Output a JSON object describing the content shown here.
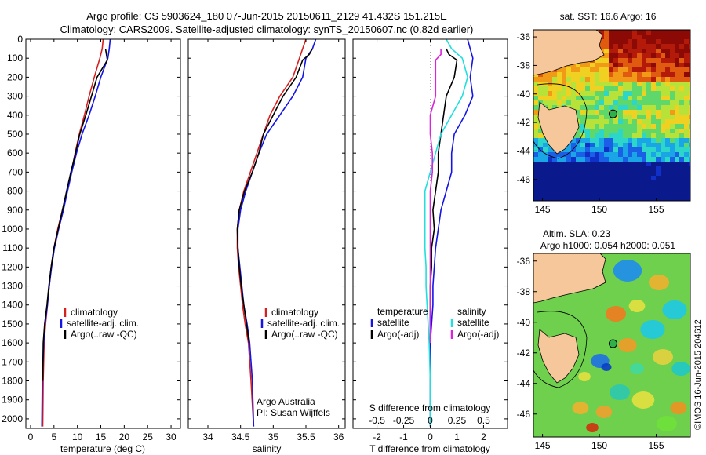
{
  "title_line1": "Argo profile: CS 5903624_180 07-Jun-2015 20150611_2129 41.432S 151.215E",
  "title_line2": "Climatology: CARS2009. Satellite-adjusted climatology: synTS_20150607.nc (0.82d earlier)",
  "colors": {
    "climatology": "#d62020",
    "satellite": "#1414e6",
    "argo": "#000000",
    "satellite_salinity": "#22dede",
    "argo_salinity": "#dd22dd",
    "land": "#f5c79a"
  },
  "chart_data": [
    {
      "type": "line",
      "name": "temperature-profile",
      "xlabel": "temperature (deg C)",
      "ylabel": "",
      "xlim": [
        -1,
        32
      ],
      "ylim": [
        2050,
        0
      ],
      "xticks": [
        0,
        5,
        10,
        15,
        20,
        25,
        30
      ],
      "yticks": [
        0,
        100,
        200,
        300,
        400,
        500,
        600,
        700,
        800,
        900,
        1000,
        1100,
        1200,
        1300,
        1400,
        1500,
        1600,
        1700,
        1800,
        1900,
        2000
      ],
      "legend": [
        "climatology",
        "satellite-adj. clim.",
        "Argo(..raw -QC)"
      ],
      "series": [
        {
          "name": "climatology",
          "color_key": "climatology",
          "x": [
            15.5,
            15.3,
            14.8,
            13.6,
            12.5,
            11.5,
            10.4,
            9.5,
            8.7,
            7.8,
            6.8,
            5.8,
            5.0,
            4.4,
            4.0,
            3.6,
            3.2,
            2.9,
            2.7,
            2.6
          ],
          "y": [
            0,
            50,
            100,
            200,
            300,
            400,
            500,
            600,
            700,
            800,
            900,
            1000,
            1100,
            1200,
            1300,
            1400,
            1500,
            1600,
            1800,
            2040
          ]
        },
        {
          "name": "satellite-adj. clim.",
          "color_key": "satellite",
          "x": [
            17.0,
            16.8,
            16.5,
            15.0,
            13.8,
            12.5,
            11.0,
            9.8,
            8.8,
            7.9,
            7.0,
            6.0,
            5.1,
            4.5,
            4.0,
            3.6,
            3.1,
            2.8,
            2.5,
            2.4
          ],
          "y": [
            0,
            50,
            100,
            200,
            300,
            400,
            500,
            600,
            700,
            800,
            900,
            1000,
            1100,
            1200,
            1300,
            1400,
            1500,
            1600,
            1800,
            2040
          ]
        },
        {
          "name": "Argo(..raw -QC)",
          "color_key": "argo",
          "x": [
            16.0,
            16.2,
            16.4,
            14.2,
            13.0,
            11.8,
            10.5,
            9.6,
            8.6,
            7.7,
            6.8,
            5.9,
            5.0,
            4.4,
            3.9,
            3.5,
            3.0,
            2.7,
            2.6
          ],
          "y": [
            50,
            80,
            110,
            200,
            300,
            400,
            500,
            600,
            700,
            800,
            900,
            1000,
            1100,
            1200,
            1300,
            1400,
            1500,
            1600,
            1800
          ]
        }
      ]
    },
    {
      "type": "line",
      "name": "salinity-profile",
      "xlabel": "salinity",
      "xlim": [
        33.7,
        36.1
      ],
      "ylim": [
        2050,
        0
      ],
      "xticks": [
        34,
        34.5,
        35,
        35.5,
        36
      ],
      "legend": [
        "climatology",
        "satellite-adj. clim.",
        "Argo(..raw -QC)"
      ],
      "annotation": [
        "Argo Australia",
        "PI: Susan Wijffels"
      ],
      "series": [
        {
          "name": "climatology",
          "color_key": "climatology",
          "x": [
            35.5,
            35.45,
            35.4,
            35.3,
            35.1,
            34.95,
            34.85,
            34.75,
            34.65,
            34.55,
            34.48,
            34.45,
            34.45,
            34.47,
            34.5,
            34.53,
            34.57,
            34.62,
            34.66,
            34.7
          ],
          "y": [
            0,
            50,
            100,
            200,
            300,
            400,
            500,
            600,
            700,
            800,
            900,
            1000,
            1100,
            1200,
            1300,
            1400,
            1500,
            1600,
            1800,
            2040
          ]
        },
        {
          "name": "satellite-adj. clim.",
          "color_key": "satellite",
          "x": [
            35.65,
            35.6,
            35.5,
            35.45,
            35.3,
            35.1,
            34.9,
            34.78,
            34.68,
            34.58,
            34.5,
            34.46,
            34.46,
            34.49,
            34.52,
            34.55,
            34.6,
            34.64,
            34.68,
            34.7
          ],
          "y": [
            0,
            50,
            100,
            200,
            300,
            400,
            500,
            600,
            700,
            800,
            900,
            1000,
            1100,
            1200,
            1300,
            1400,
            1500,
            1600,
            1800,
            2040
          ]
        },
        {
          "name": "Argo(..raw -QC)",
          "color_key": "argo",
          "x": [
            35.6,
            35.55,
            35.45,
            35.35,
            35.15,
            35.0,
            34.85,
            34.78,
            34.68,
            34.56,
            34.48,
            34.45,
            34.46,
            34.48,
            34.51,
            34.55,
            34.59,
            34.63
          ],
          "y": [
            50,
            80,
            110,
            200,
            300,
            400,
            500,
            600,
            700,
            800,
            900,
            1000,
            1100,
            1200,
            1300,
            1400,
            1500,
            1600
          ]
        }
      ]
    },
    {
      "type": "line",
      "name": "difference-profile",
      "xlabel": "T difference from climatology",
      "xlabel_top": "S difference from climatology",
      "xlim": [
        -2.9,
        2.9
      ],
      "ylim": [
        2050,
        0
      ],
      "xticks": [
        -2,
        -1,
        0,
        1,
        2
      ],
      "s_ticks": [
        -0.5,
        -0.25,
        0,
        0.25,
        0.5
      ],
      "legend_headers": [
        "temperature",
        "salinity"
      ],
      "legend_temperature": [
        "satellite",
        "Argo(-adj)"
      ],
      "legend_salinity": [
        "satellite",
        "Argo(-adj)"
      ],
      "series": [
        {
          "name": "T satellite",
          "color_key": "satellite",
          "x": [
            1.4,
            1.5,
            1.6,
            1.5,
            1.6,
            1.3,
            0.9,
            0.8,
            0.8,
            0.6,
            0.4,
            0.3,
            0.2,
            0.15,
            0.1,
            0.1,
            0.05,
            0.0,
            0.0,
            0.0
          ],
          "y": [
            0,
            50,
            100,
            200,
            300,
            400,
            500,
            600,
            700,
            800,
            900,
            1000,
            1100,
            1200,
            1300,
            1400,
            1500,
            1600,
            1800,
            2040
          ]
        },
        {
          "name": "T Argo(-adj)",
          "color_key": "argo",
          "x": [
            0.6,
            0.7,
            1.0,
            0.9,
            0.6,
            0.5,
            0.4,
            0.3,
            0.3,
            0.2,
            0.1,
            0.15,
            0.05,
            0.05,
            0.0,
            0.0,
            0.0,
            0.0
          ],
          "y": [
            50,
            80,
            110,
            200,
            300,
            400,
            500,
            600,
            700,
            800,
            900,
            1000,
            1100,
            1200,
            1300,
            1400,
            1500,
            1600
          ]
        },
        {
          "name": "S satellite",
          "color_key": "satellite_salinity",
          "x": [
            0.15,
            0.2,
            0.3,
            0.35,
            0.3,
            0.2,
            0.1,
            0.05,
            0.0,
            -0.05,
            -0.05,
            -0.05,
            -0.05,
            -0.04,
            -0.04,
            -0.03,
            -0.02,
            -0.01,
            0.0,
            0.0
          ],
          "y": [
            0,
            50,
            100,
            200,
            300,
            400,
            500,
            600,
            700,
            800,
            900,
            1000,
            1100,
            1200,
            1300,
            1400,
            1500,
            1600,
            1800,
            2040
          ]
        },
        {
          "name": "S Argo(-adj)",
          "color_key": "argo_salinity",
          "x": [
            0.1,
            0.1,
            0.05,
            0.05,
            0.05,
            0.0,
            0.0,
            0.02,
            0.02,
            0.0,
            0.0,
            0.0,
            0.0,
            0.0,
            0.0,
            0.0,
            0.0,
            0.0
          ],
          "y": [
            50,
            80,
            110,
            200,
            300,
            400,
            500,
            600,
            700,
            800,
            900,
            1000,
            1100,
            1200,
            1300,
            1400,
            1500,
            1600
          ]
        }
      ]
    },
    {
      "type": "heatmap",
      "name": "sst-map",
      "title": "sat. SST: 16.6 Argo: 16",
      "xticks": [
        145,
        150,
        155
      ],
      "yticks": [
        -36,
        -38,
        -40,
        -42,
        -44,
        -46
      ],
      "xlim": [
        144.2,
        158.0
      ],
      "ylim": [
        -47.5,
        -35.5
      ],
      "marker": {
        "lon": 151.2,
        "lat": -41.4
      }
    },
    {
      "type": "heatmap",
      "name": "sla-map",
      "title_line1": "Altim. SLA: 0.23",
      "title_line2": "Argo h1000: 0.054 h2000: 0.051",
      "xticks": [
        145,
        150,
        155
      ],
      "yticks": [
        -36,
        -38,
        -40,
        -42,
        -44,
        -46
      ],
      "xlim": [
        144.2,
        158.0
      ],
      "ylim": [
        -47.5,
        -35.5
      ],
      "marker": {
        "lon": 151.2,
        "lat": -41.4
      }
    }
  ],
  "credit": "©IMOS 16-Jun-2015 204612"
}
